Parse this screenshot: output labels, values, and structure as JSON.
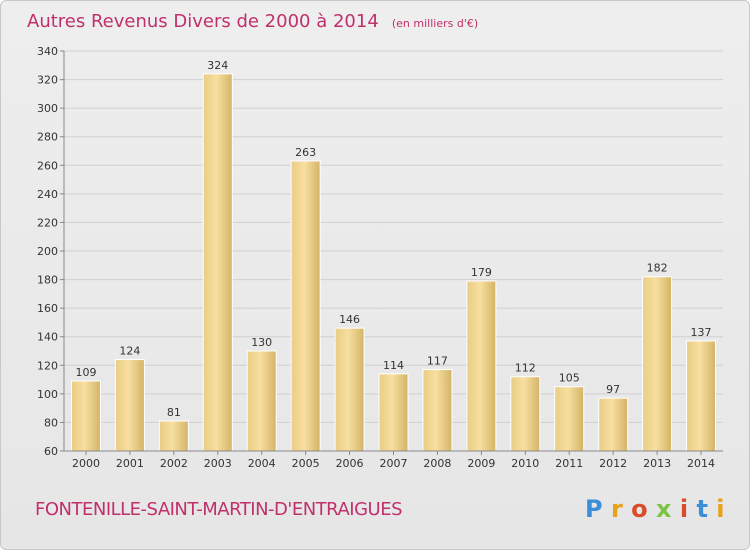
{
  "title": "Autres Revenus Divers de 2000 à 2014",
  "unit": "(en milliers d'€)",
  "commune": "FONTENILLE-SAINT-MARTIN-D'ENTRAIGUES",
  "logo": {
    "text": "Proxiti",
    "letters": [
      "P",
      "r",
      "o",
      "x",
      "i",
      "t",
      "i"
    ],
    "colors": [
      "#3a8fd8",
      "#e6a21a",
      "#d94c2a",
      "#7cc243",
      "#d94c2a",
      "#3a8fd8",
      "#e6a21a"
    ]
  },
  "colors": {
    "title": "#c0306a",
    "bar_light": "#f7dc9a",
    "bar_dark": "#d7b96a",
    "grid": "#d0d0d0"
  },
  "chart_data": {
    "type": "bar",
    "title": "Autres Revenus Divers de 2000 à 2014",
    "subtitle": "(en milliers d'€)",
    "categories": [
      "2000",
      "2001",
      "2002",
      "2003",
      "2004",
      "2005",
      "2006",
      "2007",
      "2008",
      "2009",
      "2010",
      "2011",
      "2012",
      "2013",
      "2014"
    ],
    "values": [
      109,
      124,
      81,
      324,
      130,
      263,
      146,
      114,
      117,
      179,
      112,
      105,
      97,
      182,
      137
    ],
    "ylim": [
      60,
      340
    ],
    "yticks": [
      60,
      80,
      100,
      120,
      140,
      160,
      180,
      200,
      220,
      240,
      260,
      280,
      300,
      320,
      340
    ],
    "grid": true,
    "legend": "none"
  }
}
